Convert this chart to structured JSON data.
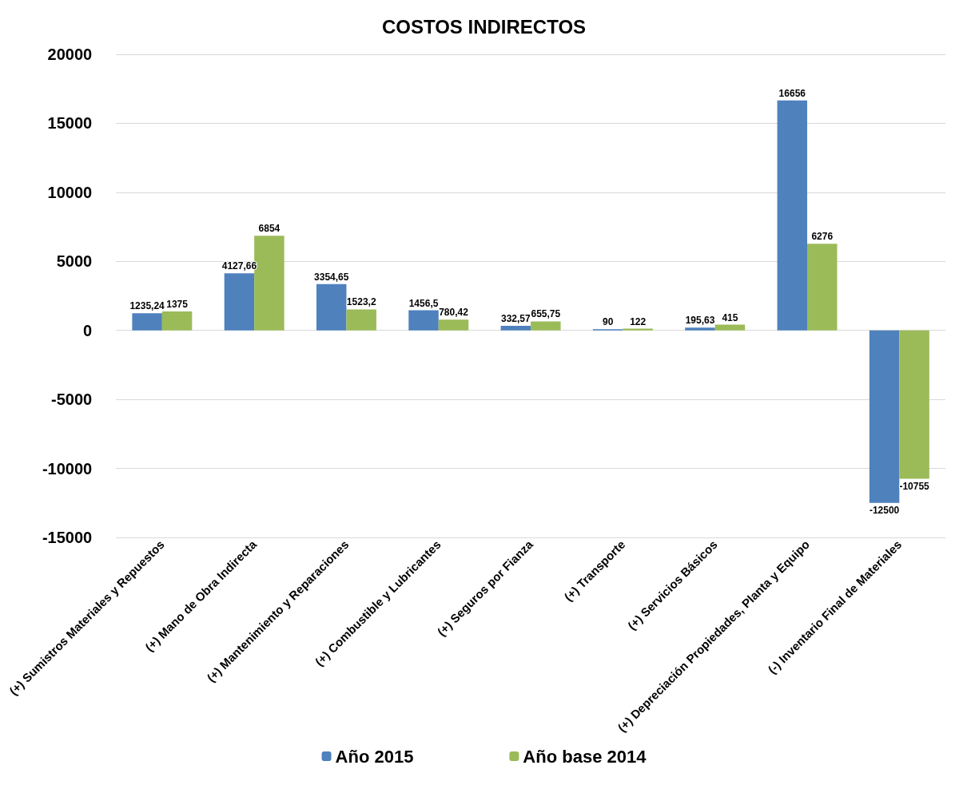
{
  "chart_data": {
    "type": "bar",
    "title": "COSTOS INDIRECTOS",
    "categories": [
      "(+) Sumistros Materiales y Repuestos",
      "(+) Mano de Obra Indirecta",
      "(+) Mantenimiento y Reparaciones",
      "(+) Combustible y Lubricantes",
      "(+) Seguros por Fianza",
      "(+) Transporte",
      "(+) Servicios Básicos",
      "(+) Depreciación Propiedades, Planta y Equipo",
      "(-) Inventario Final de Materiales"
    ],
    "series": [
      {
        "name": "Año 2015",
        "color": "#4f81bd",
        "values": [
          1235.24,
          4127.66,
          3354.65,
          1456.5,
          332.57,
          90,
          195.63,
          16656,
          -12500
        ],
        "value_labels": [
          "1235,24",
          "4127,66",
          "3354,65",
          "1456,5",
          "332,57",
          "90",
          "195,63",
          "16656",
          "-12500"
        ]
      },
      {
        "name": "Año base 2014",
        "color": "#9bbb59",
        "values": [
          1375,
          6854,
          1523.2,
          780.42,
          655.75,
          122,
          415,
          6276,
          -10755
        ],
        "value_labels": [
          "1375",
          "6854",
          "1523,2",
          "780,42",
          "655,75",
          "122",
          "415",
          "6276",
          "-10755"
        ]
      }
    ],
    "ylim": [
      -15000,
      20000
    ],
    "yticks": [
      -15000,
      -10000,
      -5000,
      0,
      5000,
      10000,
      15000,
      20000
    ],
    "grid": "y",
    "legend": "bottom"
  }
}
